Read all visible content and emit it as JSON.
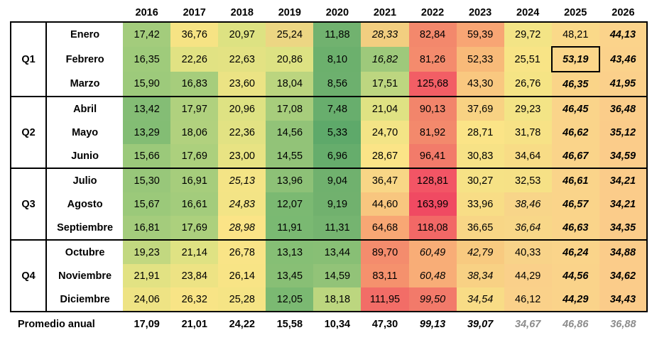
{
  "years": [
    "2016",
    "2017",
    "2018",
    "2019",
    "2020",
    "2021",
    "2022",
    "2023",
    "2024",
    "2025",
    "2026"
  ],
  "quarters": [
    {
      "label": "Q1",
      "months": [
        {
          "name": "Enero",
          "values": [
            "17,42",
            "36,76",
            "20,97",
            "25,24",
            "11,88",
            "28,33",
            "82,84",
            "59,39",
            "29,72",
            "48,21",
            "44,13"
          ],
          "colors": [
            "#a3cc7c",
            "#f6e384",
            "#dde282",
            "#ecd683",
            "#71b26f",
            "#f2ce80",
            "#f3886c",
            "#f8a574",
            "#f3e486",
            "#fad989",
            "#fbd38b"
          ],
          "styles": [
            "",
            "",
            "",
            "",
            "",
            "it",
            "",
            "",
            "",
            "",
            "proj"
          ]
        },
        {
          "name": "Febrero",
          "values": [
            "16,35",
            "22,26",
            "22,63",
            "20,86",
            "8,10",
            "16,82",
            "81,26",
            "52,33",
            "25,51",
            "53,19",
            "43,46"
          ],
          "colors": [
            "#9fcb7b",
            "#e1e283",
            "#e3e283",
            "#dde283",
            "#6cb06d",
            "#9ec97b",
            "#f48b6d",
            "#f8ba79",
            "#f8e486",
            "#fbd68a",
            "#fbd28b"
          ],
          "styles": [
            "",
            "",
            "",
            "",
            "",
            "it",
            "",
            "",
            "",
            "emph",
            "proj"
          ]
        },
        {
          "name": "Marzo",
          "values": [
            "15,90",
            "16,83",
            "23,60",
            "18,04",
            "8,56",
            "17,51",
            "125,68",
            "43,30",
            "26,76",
            "46,35",
            "41,95"
          ],
          "colors": [
            "#9dca7b",
            "#a6cd7c",
            "#ebe384",
            "#bbd57f",
            "#6db06e",
            "#bdd680",
            "#f25e65",
            "#f9c880",
            "#f5e485",
            "#fad488",
            "#fbd08b"
          ],
          "styles": [
            "",
            "",
            "",
            "",
            "",
            "",
            "",
            "",
            "",
            "proj",
            "proj"
          ]
        }
      ]
    },
    {
      "label": "Q2",
      "months": [
        {
          "name": "Abril",
          "values": [
            "13,42",
            "17,97",
            "20,96",
            "17,08",
            "7,48",
            "21,04",
            "90,13",
            "37,69",
            "29,23",
            "46,45",
            "36,48"
          ],
          "colors": [
            "#84bd75",
            "#b0d17e",
            "#dee283",
            "#a7cd7c",
            "#68ae6d",
            "#dfe283",
            "#f2856b",
            "#f8d283",
            "#f3e486",
            "#fad48a",
            "#fbcd8a"
          ],
          "styles": [
            "",
            "",
            "",
            "",
            "",
            "",
            "",
            "",
            "",
            "proj",
            "proj"
          ]
        },
        {
          "name": "Mayo",
          "values": [
            "13,29",
            "18,06",
            "22,36",
            "14,56",
            "5,33",
            "24,70",
            "81,92",
            "28,71",
            "31,78",
            "46,62",
            "35,12"
          ],
          "colors": [
            "#83bd74",
            "#b1d17e",
            "#e2e283",
            "#92c378",
            "#5ea96a",
            "#f3e486",
            "#f3896c",
            "#fbe487",
            "#f7e286",
            "#fad48a",
            "#fbcc8a"
          ],
          "styles": [
            "",
            "",
            "",
            "",
            "",
            "",
            "",
            "",
            "",
            "proj",
            "proj"
          ]
        },
        {
          "name": "Junio",
          "values": [
            "15,66",
            "17,69",
            "23,00",
            "14,55",
            "6,96",
            "28,67",
            "96,41",
            "30,83",
            "34,64",
            "46,67",
            "34,59"
          ],
          "colors": [
            "#9bc97a",
            "#acd07d",
            "#e8e383",
            "#92c378",
            "#66ad6c",
            "#fbe487",
            "#f27b6a",
            "#f7e286",
            "#f8dc86",
            "#fad48a",
            "#fbcc8a"
          ],
          "styles": [
            "",
            "",
            "",
            "",
            "",
            "",
            "",
            "",
            "",
            "proj",
            "proj"
          ]
        }
      ]
    },
    {
      "label": "Q3",
      "months": [
        {
          "name": "Julio",
          "values": [
            "15,30",
            "16,91",
            "25,13",
            "13,96",
            "9,04",
            "36,47",
            "128,81",
            "30,27",
            "32,53",
            "46,61",
            "34,21"
          ],
          "colors": [
            "#98c77a",
            "#a6cd7c",
            "#f4e486",
            "#8dc177",
            "#70b16e",
            "#f8d686",
            "#f25565",
            "#f6e286",
            "#f6e186",
            "#fad48a",
            "#fbcc8a"
          ],
          "styles": [
            "",
            "",
            "it",
            "",
            "",
            "",
            "",
            "",
            "",
            "proj",
            "proj"
          ]
        },
        {
          "name": "Agosto",
          "values": [
            "15,67",
            "16,61",
            "24,83",
            "12,07",
            "9,19",
            "44,60",
            "163,99",
            "33,96",
            "38,46",
            "46,57",
            "34,21"
          ],
          "colors": [
            "#9bc97a",
            "#a3cc7c",
            "#f3e486",
            "#7bb972",
            "#71b16e",
            "#f8c67f",
            "#f04a62",
            "#f8dd86",
            "#f8d589",
            "#fad48a",
            "#fbcc8a"
          ],
          "styles": [
            "",
            "",
            "it",
            "",
            "",
            "",
            "",
            "",
            "it",
            "proj",
            "proj"
          ]
        },
        {
          "name": "Septiembre",
          "values": [
            "16,81",
            "17,69",
            "28,98",
            "11,91",
            "11,31",
            "64,68",
            "118,08",
            "36,65",
            "36,64",
            "46,63",
            "34,35"
          ],
          "colors": [
            "#a4cc7c",
            "#acd07d",
            "#fbe487",
            "#7ab972",
            "#75b470",
            "#f8a774",
            "#f26866",
            "#f8d686",
            "#f8d788",
            "#fad48a",
            "#fbcc8a"
          ],
          "styles": [
            "",
            "",
            "it",
            "",
            "",
            "",
            "",
            "",
            "it",
            "proj",
            "proj"
          ]
        }
      ]
    },
    {
      "label": "Q4",
      "months": [
        {
          "name": "Octubre",
          "values": [
            "19,23",
            "21,14",
            "26,78",
            "13,13",
            "13,44",
            "89,70",
            "60,49",
            "42,79",
            "40,33",
            "46,24",
            "34,88"
          ],
          "colors": [
            "#c2d880",
            "#dfe283",
            "#f9e487",
            "#86bf75",
            "#88bf75",
            "#f48c6d",
            "#f8ad77",
            "#f8ca80",
            "#f8d389",
            "#fad48a",
            "#fbcc8a"
          ],
          "styles": [
            "",
            "",
            "",
            "",
            "",
            "",
            "it",
            "it",
            "",
            "proj",
            "proj"
          ]
        },
        {
          "name": "Noviembre",
          "values": [
            "21,91",
            "23,84",
            "26,14",
            "13,45",
            "14,59",
            "83,11",
            "60,48",
            "38,34",
            "44,29",
            "44,56",
            "34,62"
          ],
          "colors": [
            "#e2e283",
            "#ede384",
            "#f8e486",
            "#88bf75",
            "#92c378",
            "#f5916d",
            "#f8ad77",
            "#f8d184",
            "#fad08a",
            "#fad38a",
            "#fbcc8a"
          ],
          "styles": [
            "",
            "",
            "",
            "",
            "",
            "",
            "it",
            "it",
            "",
            "proj",
            "proj"
          ]
        },
        {
          "name": "Diciembre",
          "values": [
            "24,06",
            "26,32",
            "25,28",
            "12,05",
            "18,18",
            "111,95",
            "99,50",
            "34,54",
            "46,12",
            "44,29",
            "34,43"
          ],
          "colors": [
            "#eee384",
            "#f8e486",
            "#f5e485",
            "#7bb972",
            "#bcd67f",
            "#f26d67",
            "#f27a6a",
            "#f8dc86",
            "#fad18a",
            "#fad38a",
            "#fbcc8a"
          ],
          "styles": [
            "",
            "",
            "",
            "",
            "",
            "",
            "it",
            "it",
            "",
            "proj",
            "proj"
          ]
        }
      ]
    }
  ],
  "average": {
    "label": "Promedio anual",
    "values": [
      "17,09",
      "21,01",
      "24,22",
      "15,58",
      "10,34",
      "47,30",
      "99,13",
      "39,07",
      "34,67",
      "46,86",
      "36,88"
    ],
    "styles": [
      "",
      "",
      "",
      "",
      "",
      "",
      "it",
      "it",
      "proj",
      "proj",
      "proj"
    ]
  }
}
